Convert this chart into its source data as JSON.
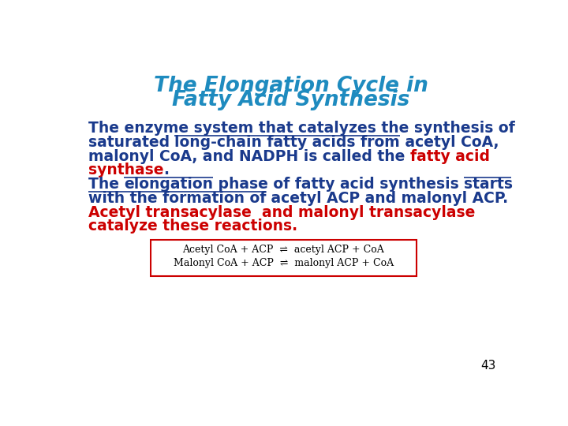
{
  "title_line1": "The Elongation Cycle in",
  "title_line2": "Fatty Acid Synthesis",
  "title_color": "#1e8bbf",
  "background_color": "#ffffff",
  "blue_color": "#1a3a8c",
  "red_color": "#cc0000",
  "page_number": "43",
  "reaction_line1": "Acetyl CoA + ACP  ⇌  acetyl ACP + CoA",
  "reaction_line2": "Malonyl CoA + ACP  ⇌  malonyl ACP + CoA"
}
